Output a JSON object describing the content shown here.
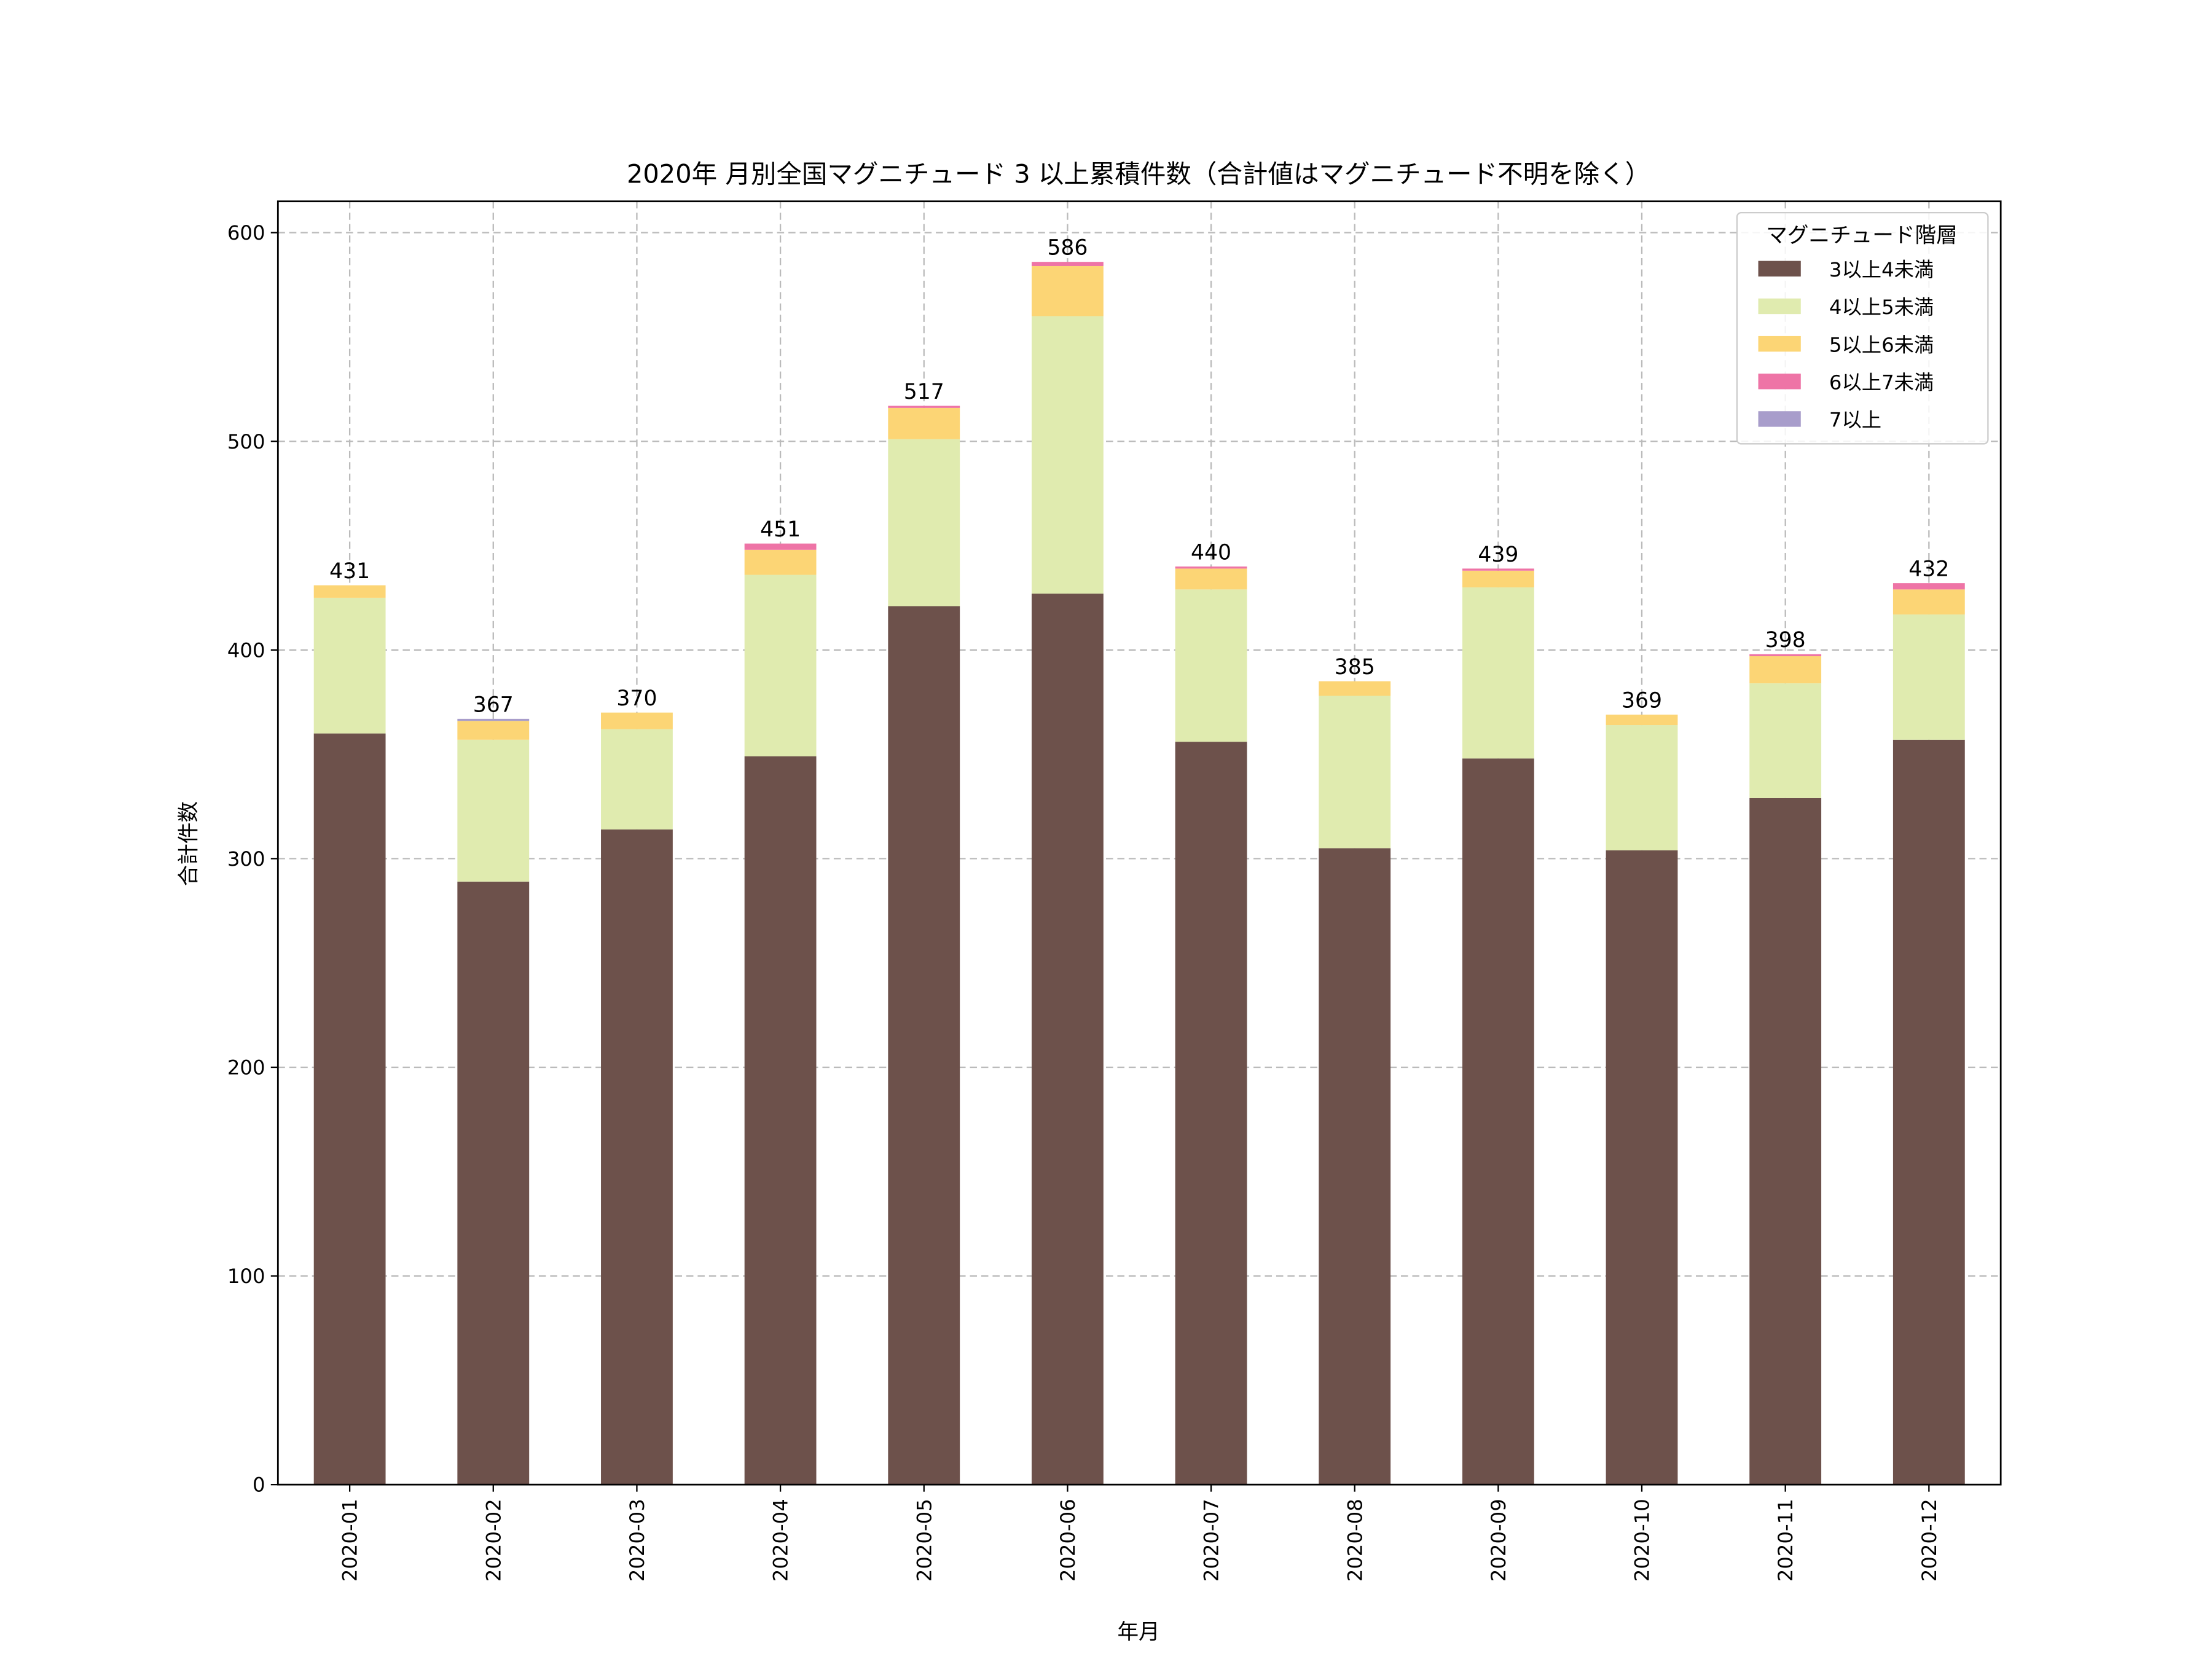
{
  "chart_data": {
    "type": "bar",
    "stacked": true,
    "title": "2020年 月別全国マグニチュード 3 以上累積件数（合計値はマグニチュード不明を除く）",
    "xlabel": "年月",
    "ylabel": "合計件数",
    "ylim": [
      0,
      615
    ],
    "yticks": [
      0,
      100,
      200,
      300,
      400,
      500,
      600
    ],
    "grid": true,
    "legend_title": "マグニチュード階層",
    "legend_placement": "top-right",
    "categories": [
      "2020-01",
      "2020-02",
      "2020-03",
      "2020-04",
      "2020-05",
      "2020-06",
      "2020-07",
      "2020-08",
      "2020-09",
      "2020-10",
      "2020-11",
      "2020-12"
    ],
    "series": [
      {
        "name": "3以上4未満",
        "color": "#6d514b",
        "values": [
          360,
          289,
          314,
          349,
          421,
          427,
          356,
          305,
          348,
          304,
          329,
          357
        ]
      },
      {
        "name": "4以上5未満",
        "color": "#e0ebaf",
        "values": [
          65,
          68,
          48,
          87,
          80,
          133,
          73,
          73,
          82,
          60,
          55,
          60
        ]
      },
      {
        "name": "5以上6未満",
        "color": "#fcd575",
        "values": [
          6,
          9,
          8,
          12,
          15,
          24,
          10,
          7,
          8,
          5,
          13,
          12
        ]
      },
      {
        "name": "6以上7未満",
        "color": "#ee74a6",
        "values": [
          0,
          0,
          0,
          3,
          1,
          2,
          1,
          0,
          1,
          0,
          1,
          3
        ]
      },
      {
        "name": "7以上",
        "color": "#a89dcb",
        "values": [
          0,
          1,
          0,
          0,
          0,
          0,
          0,
          0,
          0,
          0,
          0,
          0
        ]
      }
    ],
    "totals": [
      431,
      367,
      370,
      451,
      517,
      586,
      440,
      385,
      439,
      369,
      398,
      432
    ]
  }
}
